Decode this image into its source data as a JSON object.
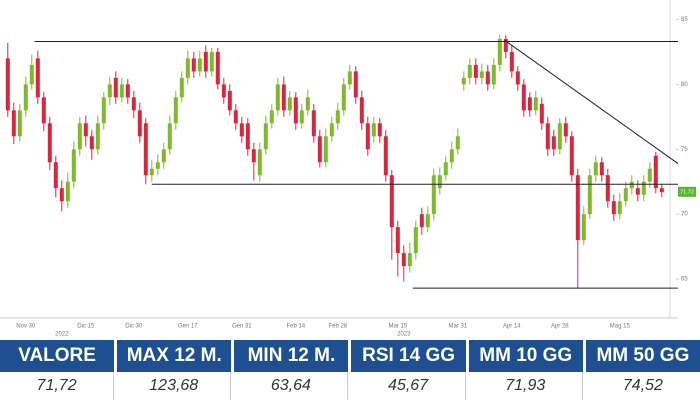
{
  "chart_data": {
    "type": "candlestick",
    "categories": [
      null,
      null,
      null,
      "Nov 30",
      null,
      null,
      null,
      null,
      null,
      null,
      null,
      null,
      null,
      "Dic 15",
      null,
      null,
      null,
      null,
      null,
      null,
      null,
      "Dic 30",
      null,
      null,
      null,
      null,
      null,
      null,
      null,
      null,
      "Gen 17",
      null,
      null,
      null,
      null,
      null,
      null,
      null,
      null,
      "Gen 31",
      null,
      null,
      null,
      null,
      null,
      null,
      null,
      null,
      "Feb 14",
      null,
      null,
      null,
      null,
      null,
      null,
      "Feb 28",
      null,
      null,
      null,
      null,
      null,
      null,
      null,
      null,
      null,
      "Mar 15",
      null,
      null,
      null,
      null,
      null,
      null,
      null,
      null,
      null,
      "Mar 31",
      null,
      null,
      null,
      null,
      null,
      null,
      null,
      null,
      "Apr 14",
      null,
      null,
      null,
      null,
      null,
      null,
      null,
      "Apr 28",
      null,
      null,
      null,
      null,
      null,
      null,
      null,
      null,
      null,
      "Mag 15",
      null,
      null,
      null,
      null,
      null,
      null,
      null
    ],
    "periods": [
      null,
      null,
      null,
      null,
      null,
      null,
      null,
      null,
      null,
      "2022",
      null,
      null,
      null,
      null,
      null,
      null,
      null,
      null,
      null,
      null,
      null,
      null,
      null,
      null,
      null,
      null,
      null,
      null,
      null,
      null,
      null,
      null,
      null,
      null,
      null,
      null,
      null,
      null,
      null,
      null,
      null,
      null,
      null,
      null,
      null,
      null,
      null,
      null,
      null,
      null,
      null,
      null,
      null,
      null,
      null,
      null,
      null,
      null,
      null,
      null,
      null,
      null,
      null,
      null,
      null,
      null,
      "2023",
      null,
      null,
      null,
      null,
      null,
      null,
      null,
      null,
      null,
      null,
      null,
      null,
      null,
      null,
      null,
      null,
      null,
      null,
      null,
      null,
      null,
      null,
      null,
      null,
      null,
      null,
      null,
      null,
      null,
      null,
      null,
      null,
      null,
      null,
      null,
      null,
      null,
      null,
      null,
      null,
      null,
      null,
      null
    ],
    "open": [
      82,
      78,
      76,
      78,
      80,
      82,
      79,
      77,
      74,
      72,
      71,
      72.5,
      75,
      77,
      76,
      75,
      77,
      79,
      80.5,
      79,
      80,
      79,
      78,
      77,
      73,
      73.5,
      74,
      75,
      77,
      79,
      80.5,
      82,
      81,
      82.5,
      81,
      82.5,
      80,
      79.5,
      78,
      77,
      77,
      75,
      73,
      75,
      77,
      78,
      80,
      78,
      79,
      77,
      78,
      78,
      76,
      74,
      76,
      77,
      78,
      80,
      81,
      79,
      77,
      76,
      77,
      76,
      73,
      69,
      67,
      66,
      67,
      70,
      69,
      70,
      72,
      73,
      74,
      75,
      80,
      80.5,
      81.5,
      80.5,
      81,
      80,
      81.5,
      83.5,
      82.5,
      81,
      80,
      79,
      78,
      78.5,
      77,
      76,
      75,
      77,
      76,
      73,
      68,
      70,
      73,
      74,
      73,
      71,
      70,
      71,
      72,
      72,
      71.5,
      72.5,
      74.5,
      72
    ],
    "high": [
      83.2,
      78.6,
      78.5,
      80.6,
      82.3,
      82.6,
      79.4,
      77.5,
      74.5,
      72.6,
      73.2,
      75.6,
      77.5,
      77.6,
      76.5,
      77.6,
      79.4,
      80.6,
      81,
      80.5,
      80.4,
      79.5,
      78.6,
      77.4,
      74.2,
      74.6,
      75.5,
      77.6,
      79.5,
      81,
      82.6,
      82.5,
      82.6,
      83,
      82.8,
      82.8,
      80.5,
      80,
      78.5,
      77.5,
      77.4,
      75.5,
      75.5,
      77.6,
      78.5,
      80.5,
      80.6,
      79.5,
      79.4,
      78.5,
      79.6,
      78.5,
      76.5,
      76.6,
      77.5,
      78.6,
      80.5,
      81.5,
      81.4,
      79.5,
      77.5,
      77.5,
      77.4,
      76.5,
      73.4,
      69.5,
      67.6,
      67.8,
      69.5,
      70.5,
      70.6,
      73.5,
      73.6,
      74.5,
      75.6,
      76.6,
      81,
      82,
      82,
      81.6,
      81.5,
      82,
      83.8,
      83.8,
      83,
      81.4,
      80.4,
      79.4,
      79.5,
      79,
      77.5,
      76.5,
      77.4,
      77.5,
      76.4,
      73.5,
      70.6,
      73.5,
      74.5,
      74.4,
      73.5,
      71.5,
      71.6,
      72.5,
      73,
      72.6,
      73,
      74,
      74.8,
      72.3
    ],
    "low": [
      77.5,
      75.4,
      75.6,
      77.5,
      79.6,
      78.5,
      76.4,
      73.4,
      71.3,
      70.2,
      70.5,
      72,
      74.5,
      75.2,
      74.2,
      74.6,
      76.5,
      78.4,
      78.5,
      78.6,
      78.5,
      77.4,
      75.5,
      72.3,
      72.5,
      73,
      73.5,
      74.6,
      76.5,
      78.6,
      80,
      80.5,
      80.6,
      80.5,
      80.6,
      79.6,
      78.5,
      77.6,
      76.5,
      75.5,
      74.5,
      72.6,
      72.5,
      74.6,
      76.6,
      77.6,
      77.5,
      77.6,
      76.5,
      76.6,
      77.6,
      75.5,
      73.6,
      73.6,
      75.6,
      76.5,
      77.6,
      79.6,
      78.5,
      76.5,
      74.5,
      75.5,
      75.5,
      72.5,
      66.5,
      65.2,
      64.8,
      65.5,
      66.5,
      68.4,
      68.6,
      69.5,
      71.5,
      72.6,
      73.5,
      74.6,
      79.5,
      80,
      80,
      80,
      79.5,
      79.6,
      81,
      82,
      80.5,
      79.5,
      77.5,
      77.5,
      77.6,
      76.5,
      74.5,
      74.5,
      74.6,
      75.5,
      72.5,
      64.3,
      67.6,
      69.6,
      72.5,
      72.5,
      70.5,
      69.5,
      69.6,
      70.6,
      71.5,
      71,
      71,
      72,
      71.6,
      71.3
    ],
    "close": [
      78,
      76,
      78,
      80,
      81.5,
      79,
      77,
      74,
      72,
      71,
      72.5,
      75,
      77,
      76,
      75,
      77,
      79,
      80,
      79,
      80,
      79,
      78,
      76,
      73,
      73.5,
      74,
      75,
      77,
      79,
      80.5,
      82,
      81,
      82,
      81,
      82.5,
      80,
      79,
      78,
      77,
      76,
      75,
      74,
      75,
      77,
      78,
      80,
      78,
      79,
      77,
      78,
      79,
      76,
      74,
      76,
      77,
      78,
      80,
      81,
      79,
      77,
      75,
      77,
      76,
      73,
      69,
      67,
      66,
      67,
      69,
      69,
      70,
      73,
      73,
      74,
      75,
      76,
      80.5,
      81.5,
      80.5,
      81,
      80,
      81.5,
      83.5,
      82.5,
      81,
      80,
      78,
      78,
      79,
      77,
      75,
      75,
      77,
      76,
      73,
      68,
      70,
      73,
      74,
      73,
      71,
      70,
      71,
      72,
      72.5,
      71.5,
      72.5,
      73.5,
      72,
      71.7
    ],
    "up_color": "#7fba2a",
    "down_color": "#d7263d",
    "xlim": [
      -1.3,
      111.7
    ],
    "ylim": [
      62,
      86.5
    ],
    "yticks": [
      65,
      70,
      75,
      80,
      85
    ],
    "trendlines": [
      {
        "x": [
          4.5,
          111.7
        ],
        "y": [
          83.3,
          83.3
        ]
      },
      {
        "x": [
          24,
          111.7
        ],
        "y": [
          72.3,
          72.3
        ]
      },
      {
        "x": [
          67.5,
          111.7
        ],
        "y": [
          64.3,
          64.3
        ]
      },
      {
        "x": [
          82.8,
          111.7
        ],
        "y": [
          83.4,
          73.9
        ]
      }
    ],
    "last_price": {
      "value": 71.72,
      "label": "71.72"
    },
    "last_color": "#5cb531"
  },
  "table": {
    "headers": [
      "VALORE",
      "MAX 12 M.",
      "MIN 12 M.",
      "RSI 14 GG",
      "MM 10 GG",
      "MM 50 GG"
    ],
    "values": [
      "71,72",
      "123,68",
      "63,64",
      "45,67",
      "71,93",
      "74,52"
    ]
  }
}
